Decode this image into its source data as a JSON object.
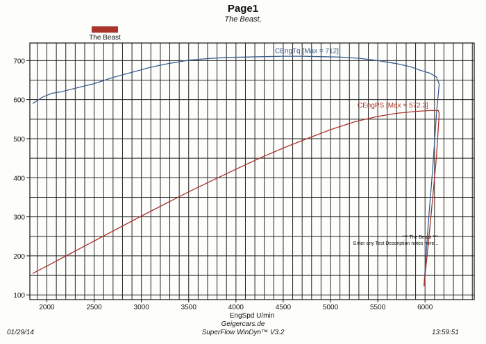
{
  "header": {
    "title": "Page1",
    "subtitle": "The Beast,"
  },
  "legend": {
    "label": "The Beast",
    "color": "#a8342a"
  },
  "footer": {
    "date": "01/29/14",
    "time": "13:59:51",
    "site": "Geigercars.de",
    "software": "SuperFlow WinDyn™ V3.2"
  },
  "chart_data": {
    "type": "line",
    "xlabel": "EngSpd U/min",
    "ylabel": "",
    "xlim": [
      1820,
      6520
    ],
    "ylim": [
      88,
      745
    ],
    "x_ticks": [
      2000,
      2500,
      3000,
      3500,
      4000,
      4500,
      5000,
      5500,
      6000
    ],
    "y_ticks": [
      100,
      200,
      300,
      400,
      500,
      600,
      700
    ],
    "grid": true,
    "series": [
      {
        "name": "CEngTq",
        "color": "#3a5d8f",
        "annotation": "CEngTq [Max = 712]",
        "points": [
          [
            1850,
            590
          ],
          [
            1950,
            606
          ],
          [
            2050,
            616
          ],
          [
            2150,
            620
          ],
          [
            2300,
            629
          ],
          [
            2500,
            641
          ],
          [
            2700,
            657
          ],
          [
            2900,
            670
          ],
          [
            3100,
            683
          ],
          [
            3300,
            693
          ],
          [
            3500,
            701
          ],
          [
            3700,
            705
          ],
          [
            3900,
            708
          ],
          [
            4100,
            709
          ],
          [
            4300,
            710
          ],
          [
            4500,
            711
          ],
          [
            4700,
            711
          ],
          [
            4900,
            710
          ],
          [
            5100,
            709
          ],
          [
            5300,
            706
          ],
          [
            5500,
            700
          ],
          [
            5700,
            692
          ],
          [
            5850,
            684
          ],
          [
            5950,
            675
          ],
          [
            6050,
            668
          ],
          [
            6120,
            658
          ],
          [
            6150,
            640
          ],
          [
            6120,
            560
          ],
          [
            6080,
            420
          ],
          [
            6040,
            300
          ],
          [
            6010,
            200
          ],
          [
            5990,
            125
          ]
        ]
      },
      {
        "name": "CEngPS",
        "color": "#a8342a",
        "annotation": "CEngPS [Max = 572.3]",
        "points": [
          [
            1850,
            155
          ],
          [
            2000,
            174
          ],
          [
            2250,
            206
          ],
          [
            2500,
            238
          ],
          [
            2750,
            270
          ],
          [
            3000,
            302
          ],
          [
            3250,
            333
          ],
          [
            3500,
            364
          ],
          [
            3750,
            393
          ],
          [
            4000,
            422
          ],
          [
            4250,
            450
          ],
          [
            4500,
            476
          ],
          [
            4750,
            500
          ],
          [
            5000,
            523
          ],
          [
            5250,
            543
          ],
          [
            5500,
            557
          ],
          [
            5700,
            565
          ],
          [
            5900,
            570
          ],
          [
            6050,
            572
          ],
          [
            6140,
            572
          ],
          [
            6150,
            565
          ],
          [
            6120,
            450
          ],
          [
            6070,
            320
          ],
          [
            6030,
            220
          ],
          [
            6000,
            150
          ],
          [
            5990,
            122
          ]
        ]
      }
    ],
    "annotation_note": [
      "*** The Beast ***",
      "Enter any Test Description notes here..."
    ]
  }
}
